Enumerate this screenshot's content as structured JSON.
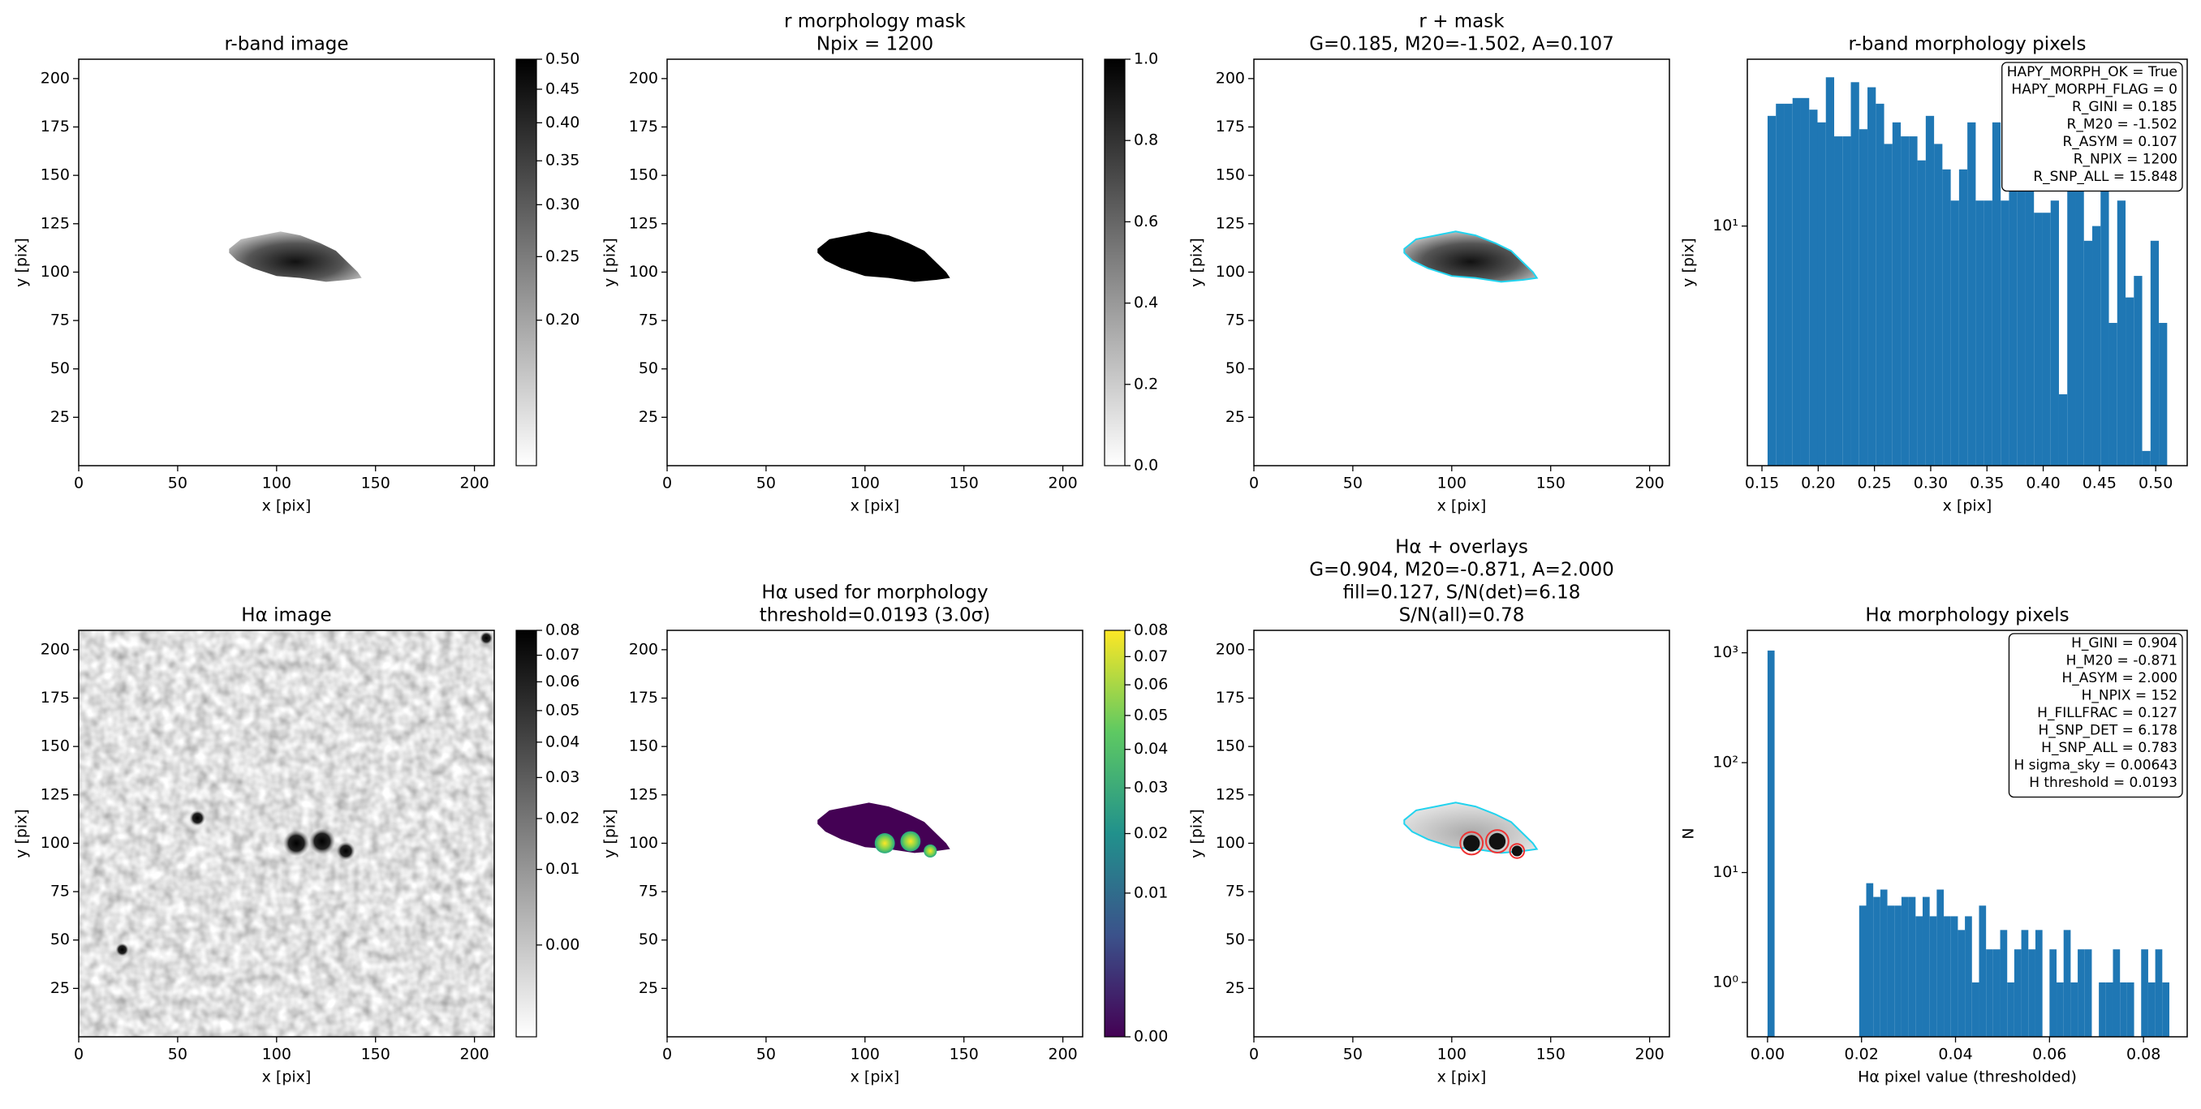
{
  "chart_data": [
    {
      "type": "image",
      "title": [
        "r-band image"
      ],
      "xlabel": "x [pix]",
      "ylabel": "y [pix]",
      "xlim": [
        0,
        210
      ],
      "ylim": [
        0,
        210
      ],
      "xticks": [
        0,
        50,
        100,
        150,
        200
      ],
      "yticks": [
        25,
        50,
        75,
        100,
        125,
        150,
        175,
        200
      ],
      "colorbar": {
        "cmap": "gray_r",
        "norm": "log",
        "clim": [
          0.12,
          0.5
        ],
        "ticks": [
          {
            "value": 0.2,
            "label": "0.20"
          },
          0.25,
          {
            "value": 0.3,
            "label": "0.30"
          },
          0.35,
          {
            "value": 0.4,
            "label": "0.40"
          },
          0.45,
          {
            "value": 0.5,
            "label": "0.50"
          }
        ]
      }
    },
    {
      "type": "image",
      "title": [
        "r morphology mask",
        "Npix = 1200"
      ],
      "xlabel": "x [pix]",
      "ylabel": "y [pix]",
      "xlim": [
        0,
        210
      ],
      "ylim": [
        0,
        210
      ],
      "xticks": [
        0,
        50,
        100,
        150,
        200
      ],
      "yticks": [
        25,
        50,
        75,
        100,
        125,
        150,
        175,
        200
      ],
      "colorbar": {
        "cmap": "gray_r",
        "norm": "linear",
        "clim": [
          0,
          1
        ],
        "ticks": [
          {
            "value": 0,
            "label": "0.0"
          },
          {
            "value": 0.2,
            "label": "0.2"
          },
          {
            "value": 0.4,
            "label": "0.4"
          },
          {
            "value": 0.6,
            "label": "0.6"
          },
          {
            "value": 0.8,
            "label": "0.8"
          },
          {
            "value": 1,
            "label": "1.0"
          }
        ]
      }
    },
    {
      "type": "image",
      "title": [
        "r + mask",
        "G=0.185, M20=-1.502, A=0.107"
      ],
      "xlabel": "x [pix]",
      "ylabel": "y [pix]",
      "xlim": [
        0,
        210
      ],
      "ylim": [
        0,
        210
      ],
      "xticks": [
        0,
        50,
        100,
        150,
        200
      ],
      "yticks": [
        25,
        50,
        75,
        100,
        125,
        150,
        175,
        200
      ]
    },
    {
      "type": "histogram",
      "title": [
        "r-band morphology pixels"
      ],
      "xlabel": "x [pix]",
      "ylabel": "y [pix]",
      "color": "#1f77b4",
      "xlim": [
        0.137,
        0.528
      ],
      "ylim": [
        1.8,
        33
      ],
      "yscale": "log",
      "xticks": [
        0.15,
        {
          "value": 0.2,
          "label": "0.20"
        },
        0.25,
        {
          "value": 0.3,
          "label": "0.30"
        },
        0.35,
        {
          "value": 0.4,
          "label": "0.40"
        },
        0.45,
        {
          "value": 0.5,
          "label": "0.50"
        }
      ],
      "yticks": [
        {
          "value": 10,
          "label": "10¹"
        }
      ],
      "bins": [
        0.155,
        0.1624,
        0.1698,
        0.1772,
        0.1846,
        0.192,
        0.1994,
        0.2068,
        0.2142,
        0.2216,
        0.229,
        0.2364,
        0.2438,
        0.2512,
        0.2586,
        0.266,
        0.2734,
        0.2808,
        0.2882,
        0.2956,
        0.303,
        0.3104,
        0.3178,
        0.3252,
        0.3326,
        0.34,
        0.3474,
        0.3548,
        0.3622,
        0.3696,
        0.377,
        0.3844,
        0.3918,
        0.3992,
        0.4066,
        0.414,
        0.4214,
        0.4288,
        0.4362,
        0.4436,
        0.451,
        0.4584,
        0.4658,
        0.4732,
        0.4806,
        0.488,
        0.4954,
        0.5028,
        0.5102
      ],
      "values": [
        22,
        24,
        24,
        25,
        25,
        23,
        21,
        29,
        19,
        19,
        28,
        20,
        27,
        24,
        18,
        21,
        19,
        19,
        16,
        22,
        18,
        15,
        12,
        15,
        21,
        12,
        12,
        21,
        12,
        20,
        13,
        14,
        11,
        11,
        12,
        3,
        13,
        14,
        9,
        10,
        13,
        5,
        12,
        6,
        7,
        2,
        9,
        5
      ],
      "annotation_loc": "upper right",
      "annotation_lines": [
        "HAPY_MORPH_OK = True",
        "HAPY_MORPH_FLAG = 0",
        "R_GINI = 0.185",
        "R_M20 = -1.502",
        "R_ASYM = 0.107",
        "R_NPIX = 1200",
        "R_SNP_ALL = 15.848"
      ]
    },
    {
      "type": "image",
      "title": [
        "Hα image"
      ],
      "xlabel": "x [pix]",
      "ylabel": "y [pix]",
      "xlim": [
        0,
        210
      ],
      "ylim": [
        0,
        210
      ],
      "xticks": [
        0,
        50,
        100,
        150,
        200
      ],
      "yticks": [
        25,
        50,
        75,
        100,
        125,
        150,
        175,
        200
      ],
      "colorbar": {
        "cmap": "gray_r",
        "norm": "sqrt",
        "clim": [
          -0.0043,
          0.08
        ],
        "ticks": [
          {
            "value": 0,
            "label": "0.00"
          },
          0.01,
          0.02,
          0.03,
          0.04,
          0.05,
          0.06,
          0.07,
          0.08
        ]
      }
    },
    {
      "type": "image",
      "title": [
        "Hα used for morphology",
        "threshold=0.0193 (3.0σ)"
      ],
      "xlabel": "x [pix]",
      "ylabel": "y [pix]",
      "xlim": [
        0,
        210
      ],
      "ylim": [
        0,
        210
      ],
      "xticks": [
        0,
        50,
        100,
        150,
        200
      ],
      "yticks": [
        25,
        50,
        75,
        100,
        125,
        150,
        175,
        200
      ],
      "colorbar": {
        "cmap": "viridis",
        "norm": "sqrt",
        "clim": [
          0,
          0.08
        ],
        "ticks": [
          {
            "value": 0,
            "label": "0.00"
          },
          0.01,
          0.02,
          0.03,
          0.04,
          0.05,
          0.06,
          0.07,
          0.08
        ]
      }
    },
    {
      "type": "image",
      "title": [
        "Hα + overlays",
        "G=0.904, M20=-0.871, A=2.000",
        "fill=0.127, S/N(det)=6.18",
        "S/N(all)=0.78"
      ],
      "xlabel": "x [pix]",
      "ylabel": "y [pix]",
      "xlim": [
        0,
        210
      ],
      "ylim": [
        0,
        210
      ],
      "xticks": [
        0,
        50,
        100,
        150,
        200
      ],
      "yticks": [
        25,
        50,
        75,
        100,
        125,
        150,
        175,
        200
      ]
    },
    {
      "type": "histogram",
      "title": [
        "Hα morphology pixels"
      ],
      "xlabel": "Hα pixel value (thresholded)",
      "ylabel": "N",
      "color": "#1f77b4",
      "xlim": [
        -0.0043,
        0.0893
      ],
      "ylim": [
        0.32,
        1600
      ],
      "yscale": "log",
      "xticks": [
        {
          "value": 0,
          "label": "0.00"
        },
        0.02,
        0.04,
        0.06,
        0.08
      ],
      "yticks": [
        {
          "value": 1,
          "label": "10⁰"
        },
        {
          "value": 10,
          "label": "10¹"
        },
        {
          "value": 100,
          "label": "10²"
        },
        {
          "value": 1000,
          "label": "10³"
        }
      ],
      "bins": [
        0,
        0.0015,
        0.003,
        0.0045,
        0.006,
        0.0075,
        0.009,
        0.0105,
        0.012,
        0.0135,
        0.015,
        0.0165,
        0.018,
        0.0195,
        0.021,
        0.0225,
        0.024,
        0.0255,
        0.027,
        0.0285,
        0.03,
        0.0315,
        0.033,
        0.0345,
        0.036,
        0.0375,
        0.039,
        0.0405,
        0.042,
        0.0435,
        0.045,
        0.0465,
        0.048,
        0.0495,
        0.051,
        0.0525,
        0.054,
        0.0555,
        0.057,
        0.0585,
        0.06,
        0.0615,
        0.063,
        0.0645,
        0.066,
        0.0675,
        0.069,
        0.0705,
        0.072,
        0.0735,
        0.075,
        0.0765,
        0.078,
        0.0795,
        0.081,
        0.0825,
        0.084,
        0.0855
      ],
      "values": [
        1048,
        0,
        0,
        0,
        0,
        0,
        0,
        0,
        0,
        0,
        0,
        0,
        0,
        5,
        8,
        6,
        7,
        5,
        5,
        6,
        6,
        4,
        6,
        4,
        7,
        4,
        4,
        3,
        4,
        1,
        5,
        2,
        2,
        3,
        1,
        2,
        3,
        2,
        3,
        0,
        2,
        1,
        3,
        1,
        2,
        2,
        0,
        1,
        1,
        2,
        1,
        1,
        0,
        2,
        1,
        2,
        1
      ],
      "annotation_loc": "upper right",
      "annotation_lines": [
        "H_GINI = 0.904",
        "H_M20 = -0.871",
        "H_ASYM = 2.000",
        "H_NPIX = 152",
        "H_FILLFRAC = 0.127",
        "H_SNP_DET = 6.178",
        "H_SNP_ALL = 0.783",
        "H sigma_sky = 0.00643",
        "H threshold = 0.0193"
      ]
    }
  ]
}
